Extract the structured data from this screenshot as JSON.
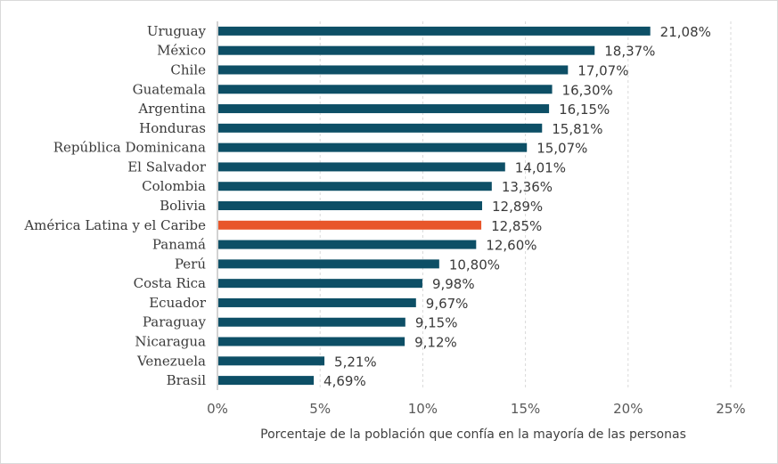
{
  "chart_data": {
    "type": "bar",
    "orientation": "horizontal",
    "categories": [
      "Uruguay",
      "México",
      "Chile",
      "Guatemala",
      "Argentina",
      "Honduras",
      "República Dominicana",
      "El Salvador",
      "Colombia",
      "Bolivia",
      "América Latina y el Caribe",
      "Panamá",
      "Perú",
      "Costa Rica",
      "Ecuador",
      "Paraguay",
      "Nicaragua",
      "Venezuela",
      "Brasil"
    ],
    "values": [
      21.08,
      18.37,
      17.07,
      16.3,
      16.15,
      15.81,
      15.07,
      14.01,
      13.36,
      12.89,
      12.85,
      12.6,
      10.8,
      9.98,
      9.67,
      9.15,
      9.12,
      5.21,
      4.69
    ],
    "value_labels": [
      "21,08%",
      "18,37%",
      "17,07%",
      "16,30%",
      "16,15%",
      "15,81%",
      "15,07%",
      "14,01%",
      "13,36%",
      "12,89%",
      "12,85%",
      "12,60%",
      "10,80%",
      "9,98%",
      "9,67%",
      "9,15%",
      "9,12%",
      "5,21%",
      "4,69%"
    ],
    "highlight": "América Latina y el Caribe",
    "xlim": [
      0,
      25
    ],
    "xticks": [
      0,
      5,
      10,
      15,
      20,
      25
    ],
    "xtick_labels": [
      "0%",
      "5%",
      "10%",
      "15%",
      "20%",
      "25%"
    ],
    "xlabel": "Porcentaje de la población que confía en la mayoría de las personas",
    "ylabel": "",
    "title": "",
    "grid": true,
    "colors": {
      "bar": "#0d4f66",
      "highlight": "#e8562a"
    }
  }
}
